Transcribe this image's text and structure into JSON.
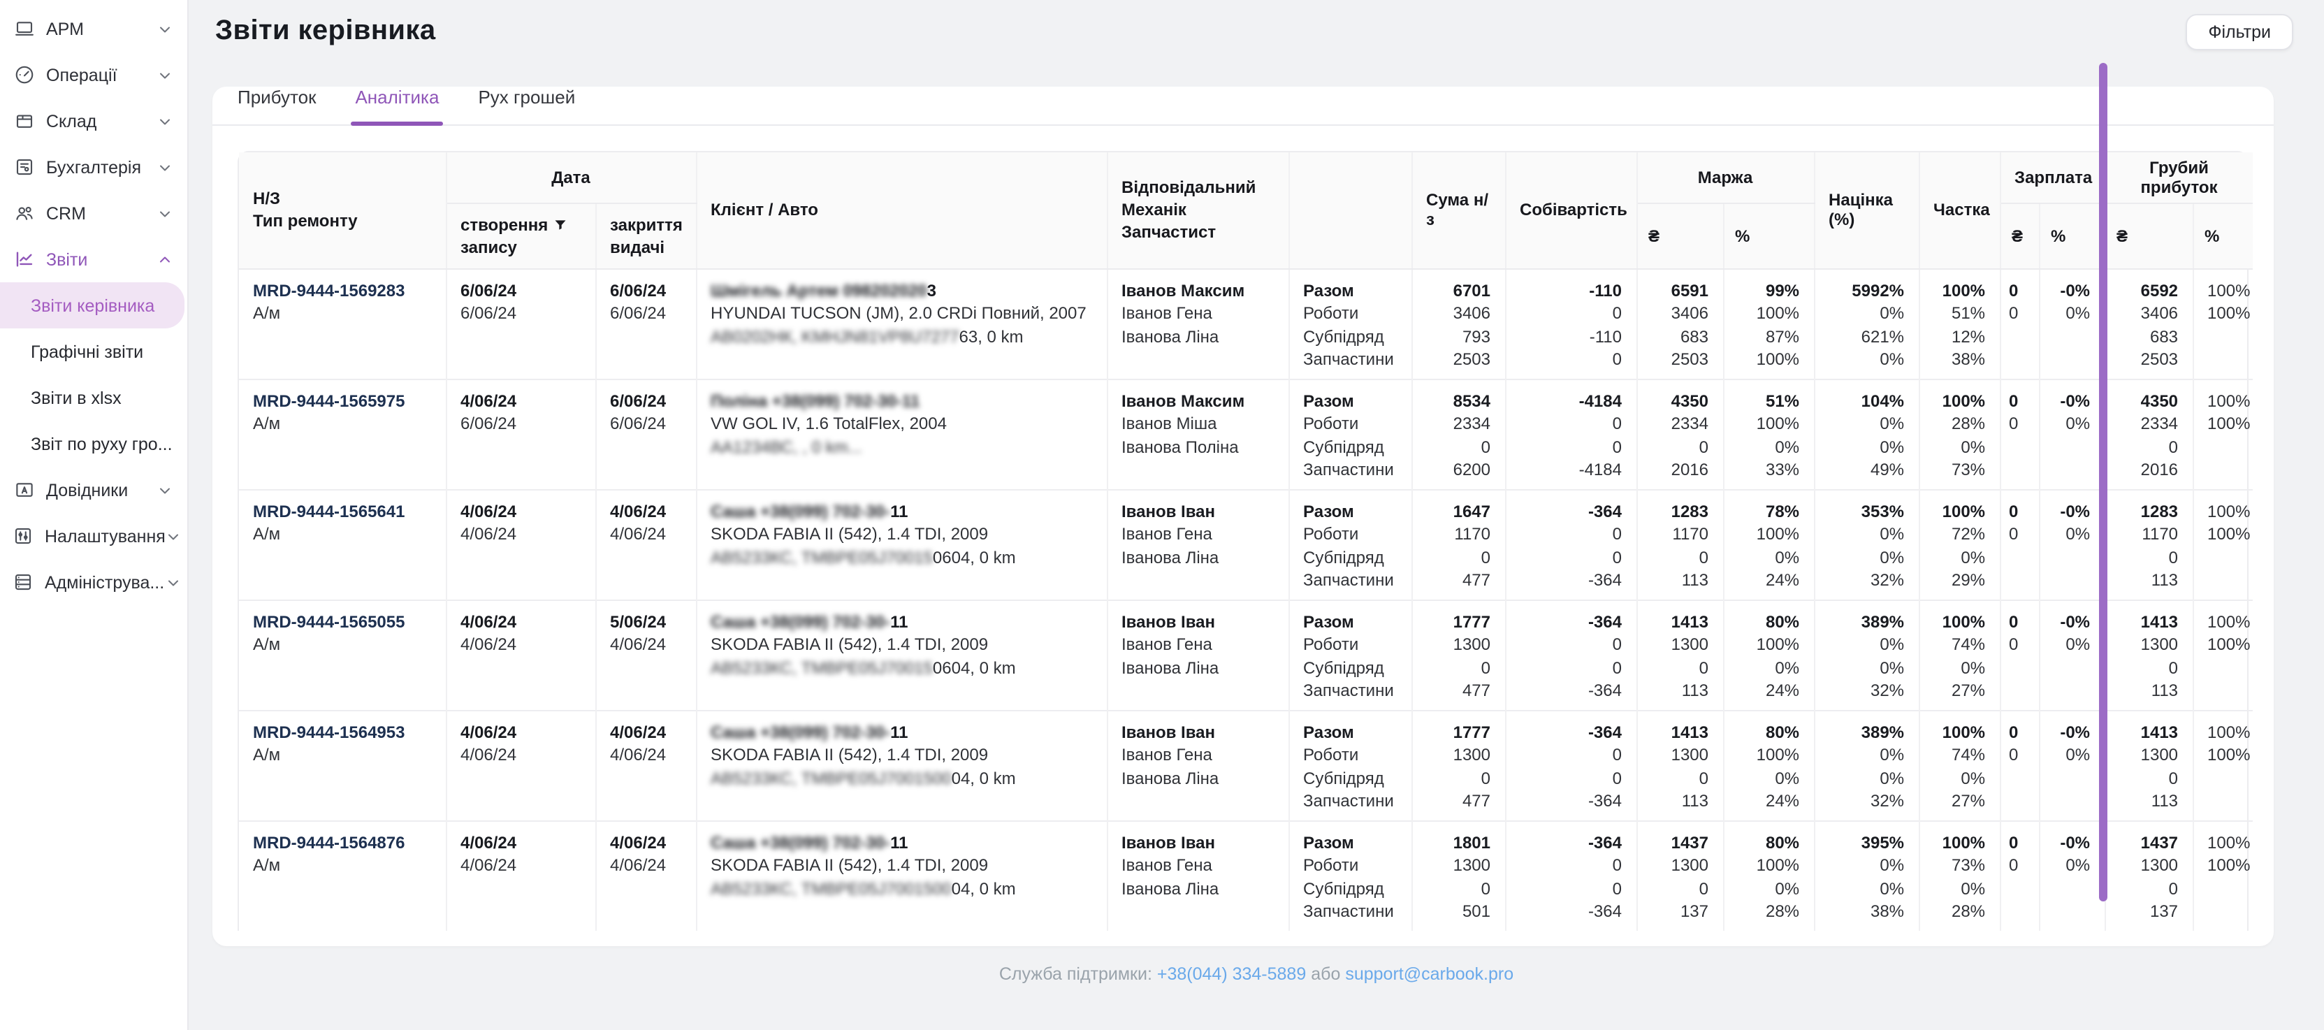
{
  "accent": "#8f56b8",
  "header": {
    "title": "Звіти керівника",
    "filters_button": "Фільтри"
  },
  "sidebar": {
    "items": [
      {
        "label": "АРМ",
        "icon": "laptop-icon",
        "chevron": "down"
      },
      {
        "label": "Операції",
        "icon": "gauge-icon",
        "chevron": "down"
      },
      {
        "label": "Склад",
        "icon": "package-icon",
        "chevron": "down"
      },
      {
        "label": "Бухгалтерія",
        "icon": "ledger-icon",
        "chevron": "down"
      },
      {
        "label": "CRM",
        "icon": "people-icon",
        "chevron": "down"
      },
      {
        "label": "Звіти",
        "icon": "chart-icon",
        "chevron": "up",
        "active": true
      }
    ],
    "submenu": [
      {
        "label": "Звіти керівника",
        "active": true
      },
      {
        "label": "Графічні звіти"
      },
      {
        "label": "Звіти в xlsx"
      },
      {
        "label": "Звіт по руху гро..."
      }
    ],
    "items_bottom": [
      {
        "label": "Довідники",
        "icon": "directory-icon",
        "chevron": "down"
      },
      {
        "label": "Налаштування",
        "icon": "sliders-icon",
        "chevron": "down"
      },
      {
        "label": "Адмініструва...",
        "icon": "server-icon",
        "chevron": "down"
      }
    ]
  },
  "tabs": [
    {
      "label": "Прибуток"
    },
    {
      "label": "Аналітика",
      "active": true
    },
    {
      "label": "Рух грошей"
    }
  ],
  "table": {
    "headers": {
      "nz": "Н/З",
      "nz_sub": "Тип ремонту",
      "data_group": "Дата",
      "created_line1": "створення",
      "created_line2": "запису",
      "closed_line1": "закриття",
      "closed_line2": "видачі",
      "client": "Клієнт / Авто",
      "staff1": "Відповідальний",
      "staff2": "Механік",
      "staff3": "Запчастист",
      "suma": "Сума н/з",
      "sobivartist": "Собівартість",
      "marzha": "Маржа",
      "uah": "₴",
      "pct": "%",
      "nacinka": "Націнка (%)",
      "chastka": "Частка",
      "zarplata": "Зарплата",
      "gross_profit": "Грубий прибуток"
    },
    "breakdown_labels": [
      "Разом",
      "Роботи",
      "Субпідряд",
      "Запчастини"
    ],
    "rows": [
      {
        "id": "MRD-9444-1569283",
        "type": "А/м",
        "created": [
          "6/06/24",
          "6/06/24"
        ],
        "closed": [
          "6/06/24",
          "6/06/24"
        ],
        "client": {
          "name_blur": "Шмігель Артем 098202020",
          "name_clear": "3",
          "car": "HYUNDAI TUCSON (JM), 2.0 CRDi Повний, 2007",
          "plate_blur": "АВ0202НК, KMHJN81VP8U7277",
          "plate_clear": "63, 0 km"
        },
        "staff": [
          "Іванов Максим",
          "Іванов Гена",
          "Іванова Ліна"
        ],
        "suma": [
          "6701",
          "3406",
          "793",
          "2503"
        ],
        "sobivartist": [
          "-110",
          "0",
          "-110",
          "0"
        ],
        "marzha_uah": [
          "6591",
          "3406",
          "683",
          "2503"
        ],
        "marzha_pct": [
          "99%",
          "100%",
          "87%",
          "100%"
        ],
        "nacinka": [
          "5992%",
          "0%",
          "621%",
          "0%"
        ],
        "chastka": [
          "100%",
          "51%",
          "12%",
          "38%"
        ],
        "zp_uah": [
          "0",
          "0",
          "",
          ""
        ],
        "zp_pct": [
          "-0%",
          "0%",
          "",
          ""
        ],
        "gp_uah": [
          "6592",
          "3406",
          "683",
          "2503"
        ],
        "gp_pct": [
          "100%",
          "100%",
          "",
          ""
        ]
      },
      {
        "id": "MRD-9444-1565975",
        "type": "А/м",
        "created": [
          "4/06/24",
          "6/06/24"
        ],
        "closed": [
          "6/06/24",
          "6/06/24"
        ],
        "client": {
          "name_blur": "Поліна +38(099) 702-30-11",
          "name_clear": "",
          "car": "VW GOL IV, 1.6 TotalFlex, 2004",
          "plate_blur": "АА1234ВС, , 0 km...",
          "plate_clear": ""
        },
        "staff": [
          "Іванов Максим",
          "Іванов Міша",
          "Іванова Поліна"
        ],
        "suma": [
          "8534",
          "2334",
          "0",
          "6200"
        ],
        "sobivartist": [
          "-4184",
          "0",
          "0",
          "-4184"
        ],
        "marzha_uah": [
          "4350",
          "2334",
          "0",
          "2016"
        ],
        "marzha_pct": [
          "51%",
          "100%",
          "0%",
          "33%"
        ],
        "nacinka": [
          "104%",
          "0%",
          "0%",
          "49%"
        ],
        "chastka": [
          "100%",
          "28%",
          "0%",
          "73%"
        ],
        "zp_uah": [
          "0",
          "0",
          "",
          ""
        ],
        "zp_pct": [
          "-0%",
          "0%",
          "",
          ""
        ],
        "gp_uah": [
          "4350",
          "2334",
          "0",
          "2016"
        ],
        "gp_pct": [
          "100%",
          "100%",
          "",
          ""
        ]
      },
      {
        "id": "MRD-9444-1565641",
        "type": "А/м",
        "created": [
          "4/06/24",
          "4/06/24"
        ],
        "closed": [
          "4/06/24",
          "4/06/24"
        ],
        "client": {
          "name_blur": "Саша +38(099) 702-30-",
          "name_clear": "11",
          "car": "SKODA FABIA II (542), 1.4 TDI, 2009",
          "plate_blur": "АВ5233КС, TMBPE05J70015",
          "plate_clear": "0604, 0 km"
        },
        "staff": [
          "Іванов Іван",
          "Іванов Гена",
          "Іванова Ліна"
        ],
        "suma": [
          "1647",
          "1170",
          "0",
          "477"
        ],
        "sobivartist": [
          "-364",
          "0",
          "0",
          "-364"
        ],
        "marzha_uah": [
          "1283",
          "1170",
          "0",
          "113"
        ],
        "marzha_pct": [
          "78%",
          "100%",
          "0%",
          "24%"
        ],
        "nacinka": [
          "353%",
          "0%",
          "0%",
          "32%"
        ],
        "chastka": [
          "100%",
          "72%",
          "0%",
          "29%"
        ],
        "zp_uah": [
          "0",
          "0",
          "",
          ""
        ],
        "zp_pct": [
          "-0%",
          "0%",
          "",
          ""
        ],
        "gp_uah": [
          "1283",
          "1170",
          "0",
          "113"
        ],
        "gp_pct": [
          "100%",
          "100%",
          "",
          ""
        ]
      },
      {
        "id": "MRD-9444-1565055",
        "type": "А/м",
        "created": [
          "4/06/24",
          "4/06/24"
        ],
        "closed": [
          "5/06/24",
          "4/06/24"
        ],
        "client": {
          "name_blur": "Саша +38(099) 702-30-",
          "name_clear": "11",
          "car": "SKODA FABIA II (542), 1.4 TDI, 2009",
          "plate_blur": "АВ5233КС, TMBPE05J70015",
          "plate_clear": "0604, 0 km"
        },
        "staff": [
          "Іванов Іван",
          "Іванов Гена",
          "Іванова Ліна"
        ],
        "suma": [
          "1777",
          "1300",
          "0",
          "477"
        ],
        "sobivartist": [
          "-364",
          "0",
          "0",
          "-364"
        ],
        "marzha_uah": [
          "1413",
          "1300",
          "0",
          "113"
        ],
        "marzha_pct": [
          "80%",
          "100%",
          "0%",
          "24%"
        ],
        "nacinka": [
          "389%",
          "0%",
          "0%",
          "32%"
        ],
        "chastka": [
          "100%",
          "74%",
          "0%",
          "27%"
        ],
        "zp_uah": [
          "0",
          "0",
          "",
          ""
        ],
        "zp_pct": [
          "-0%",
          "0%",
          "",
          ""
        ],
        "gp_uah": [
          "1413",
          "1300",
          "0",
          "113"
        ],
        "gp_pct": [
          "100%",
          "100%",
          "",
          ""
        ]
      },
      {
        "id": "MRD-9444-1564953",
        "type": "А/м",
        "created": [
          "4/06/24",
          "4/06/24"
        ],
        "closed": [
          "4/06/24",
          "4/06/24"
        ],
        "client": {
          "name_blur": "Саша +38(099) 702-30-",
          "name_clear": "11",
          "car": "SKODA FABIA II (542), 1.4 TDI, 2009",
          "plate_blur": "АВ5233КС, TMBPE05J7001500",
          "plate_clear": "04, 0 km"
        },
        "staff": [
          "Іванов Іван",
          "Іванов Гена",
          "Іванова Ліна"
        ],
        "suma": [
          "1777",
          "1300",
          "0",
          "477"
        ],
        "sobivartist": [
          "-364",
          "0",
          "0",
          "-364"
        ],
        "marzha_uah": [
          "1413",
          "1300",
          "0",
          "113"
        ],
        "marzha_pct": [
          "80%",
          "100%",
          "0%",
          "24%"
        ],
        "nacinka": [
          "389%",
          "0%",
          "0%",
          "32%"
        ],
        "chastka": [
          "100%",
          "74%",
          "0%",
          "27%"
        ],
        "zp_uah": [
          "0",
          "0",
          "",
          ""
        ],
        "zp_pct": [
          "-0%",
          "0%",
          "",
          ""
        ],
        "gp_uah": [
          "1413",
          "1300",
          "0",
          "113"
        ],
        "gp_pct": [
          "100%",
          "100%",
          "",
          ""
        ]
      },
      {
        "id": "MRD-9444-1564876",
        "type": "А/м",
        "created": [
          "4/06/24",
          "4/06/24"
        ],
        "closed": [
          "4/06/24",
          "4/06/24"
        ],
        "client": {
          "name_blur": "Саша +38(099) 702-30-",
          "name_clear": "11",
          "car": "SKODA FABIA II (542), 1.4 TDI, 2009",
          "plate_blur": "АВ5233КС, TMBPE05J7001500",
          "plate_clear": "04, 0 km"
        },
        "staff": [
          "Іванов Іван",
          "Іванов Гена",
          "Іванова Ліна"
        ],
        "suma": [
          "1801",
          "1300",
          "0",
          "501"
        ],
        "sobivartist": [
          "-364",
          "0",
          "0",
          "-364"
        ],
        "marzha_uah": [
          "1437",
          "1300",
          "0",
          "137"
        ],
        "marzha_pct": [
          "80%",
          "100%",
          "0%",
          "28%"
        ],
        "nacinka": [
          "395%",
          "0%",
          "0%",
          "38%"
        ],
        "chastka": [
          "100%",
          "73%",
          "0%",
          "28%"
        ],
        "zp_uah": [
          "0",
          "0",
          "",
          ""
        ],
        "zp_pct": [
          "-0%",
          "0%",
          "",
          ""
        ],
        "gp_uah": [
          "1437",
          "1300",
          "0",
          "137"
        ],
        "gp_pct": [
          "100%",
          "100%",
          "",
          ""
        ]
      }
    ]
  },
  "footer": {
    "prefix": "Служба підтримки:",
    "phone": "+38(044) 334-5889",
    "or": "або",
    "email": "support@carbook.pro"
  }
}
